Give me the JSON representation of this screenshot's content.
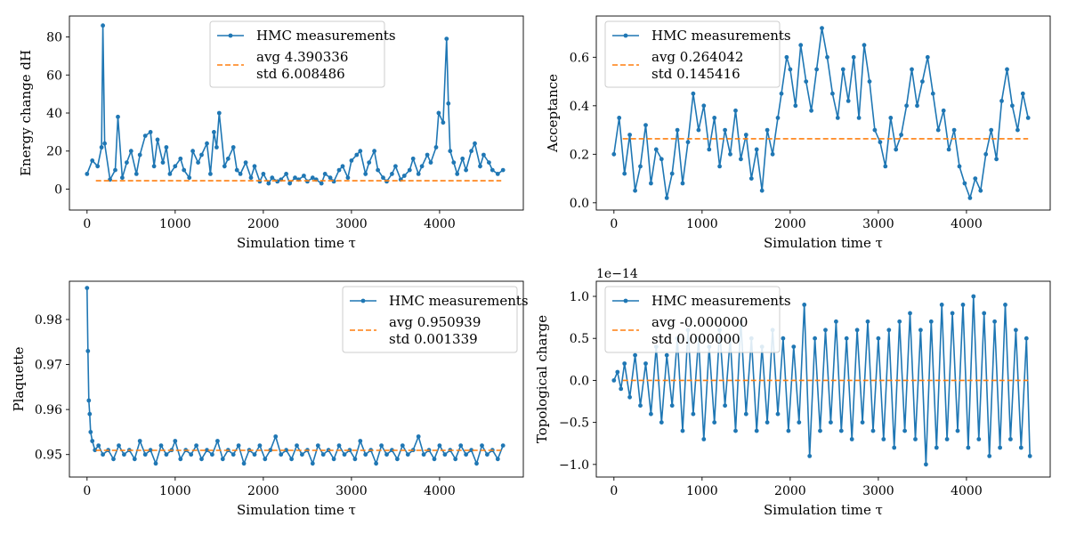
{
  "chart_data": [
    {
      "type": "line",
      "xlabel": "Simulation time τ",
      "ylabel": "Energy change dH",
      "xlim": [
        -200,
        4950
      ],
      "ylim": [
        -11,
        91
      ],
      "xticks": [
        0,
        1000,
        2000,
        3000,
        4000
      ],
      "yticks": [
        0,
        20,
        40,
        60,
        80
      ],
      "legend_position": "upper-center",
      "offset_text": "",
      "series": [
        {
          "name": "HMC measurements",
          "color": "#1f77b4",
          "style": "line-dots",
          "x": [
            0,
            60,
            120,
            165,
            180,
            200,
            260,
            320,
            350,
            400,
            450,
            500,
            560,
            600,
            660,
            720,
            760,
            800,
            860,
            900,
            940,
            1000,
            1060,
            1100,
            1160,
            1200,
            1260,
            1300,
            1360,
            1400,
            1440,
            1470,
            1500,
            1560,
            1600,
            1660,
            1700,
            1740,
            1800,
            1860,
            1900,
            1960,
            2000,
            2060,
            2100,
            2160,
            2200,
            2260,
            2300,
            2360,
            2400,
            2460,
            2500,
            2560,
            2600,
            2660,
            2700,
            2760,
            2800,
            2860,
            2900,
            2960,
            3000,
            3060,
            3100,
            3160,
            3200,
            3260,
            3300,
            3360,
            3400,
            3460,
            3500,
            3560,
            3600,
            3660,
            3700,
            3760,
            3800,
            3860,
            3900,
            3960,
            3990,
            4040,
            4080,
            4100,
            4120,
            4160,
            4200,
            4260,
            4300,
            4360,
            4400,
            4460,
            4500,
            4560,
            4600,
            4660,
            4720
          ],
          "y": [
            8,
            15,
            12,
            22,
            86,
            24,
            5,
            10,
            38,
            6,
            14,
            20,
            8,
            18,
            28,
            30,
            12,
            26,
            14,
            22,
            8,
            12,
            16,
            10,
            6,
            20,
            14,
            18,
            24,
            8,
            30,
            22,
            40,
            12,
            16,
            22,
            10,
            8,
            14,
            6,
            12,
            4,
            8,
            3,
            6,
            4,
            5,
            8,
            3,
            6,
            5,
            7,
            4,
            6,
            5,
            3,
            8,
            6,
            4,
            10,
            12,
            6,
            15,
            18,
            20,
            8,
            14,
            20,
            10,
            6,
            4,
            8,
            12,
            5,
            7,
            10,
            16,
            8,
            12,
            18,
            14,
            22,
            40,
            35,
            79,
            45,
            20,
            14,
            8,
            16,
            10,
            20,
            24,
            12,
            18,
            14,
            10,
            8,
            10
          ]
        },
        {
          "name": "avg 4.390336\nstd 6.008486",
          "color": "#ff7f0e",
          "style": "dashed",
          "x": [
            100,
            4700
          ],
          "y": [
            4.39,
            4.39
          ]
        }
      ],
      "legend_lines": [
        "HMC measurements",
        "avg 4.390336",
        "std 6.008486"
      ]
    },
    {
      "type": "line",
      "xlabel": "Simulation time τ",
      "ylabel": "Acceptance",
      "xlim": [
        -200,
        4950
      ],
      "ylim": [
        -0.03,
        0.77
      ],
      "xticks": [
        0,
        1000,
        2000,
        3000,
        4000
      ],
      "yticks": [
        0.0,
        0.2,
        0.4,
        0.6
      ],
      "legend_position": "upper-left",
      "offset_text": "",
      "series": [
        {
          "name": "HMC measurements",
          "color": "#1f77b4",
          "style": "line-dots",
          "x": [
            0,
            60,
            120,
            180,
            240,
            300,
            360,
            420,
            480,
            540,
            600,
            660,
            720,
            780,
            840,
            900,
            960,
            1020,
            1080,
            1140,
            1200,
            1260,
            1320,
            1380,
            1440,
            1500,
            1560,
            1620,
            1680,
            1740,
            1800,
            1860,
            1900,
            1960,
            2000,
            2060,
            2120,
            2180,
            2240,
            2300,
            2360,
            2420,
            2480,
            2540,
            2600,
            2660,
            2720,
            2780,
            2840,
            2900,
            2960,
            3020,
            3080,
            3140,
            3200,
            3260,
            3320,
            3380,
            3440,
            3500,
            3560,
            3620,
            3680,
            3740,
            3800,
            3860,
            3920,
            3980,
            4040,
            4100,
            4160,
            4220,
            4280,
            4340,
            4400,
            4460,
            4520,
            4580,
            4640,
            4700
          ],
          "y": [
            0.2,
            0.35,
            0.12,
            0.28,
            0.05,
            0.15,
            0.32,
            0.08,
            0.22,
            0.18,
            0.02,
            0.12,
            0.3,
            0.08,
            0.25,
            0.45,
            0.3,
            0.4,
            0.22,
            0.35,
            0.15,
            0.3,
            0.2,
            0.38,
            0.18,
            0.28,
            0.1,
            0.22,
            0.05,
            0.3,
            0.2,
            0.35,
            0.45,
            0.6,
            0.55,
            0.4,
            0.65,
            0.5,
            0.38,
            0.55,
            0.72,
            0.6,
            0.45,
            0.35,
            0.55,
            0.42,
            0.6,
            0.35,
            0.65,
            0.5,
            0.3,
            0.25,
            0.15,
            0.35,
            0.22,
            0.28,
            0.4,
            0.55,
            0.4,
            0.5,
            0.6,
            0.45,
            0.3,
            0.38,
            0.22,
            0.3,
            0.15,
            0.08,
            0.02,
            0.1,
            0.05,
            0.2,
            0.3,
            0.18,
            0.42,
            0.55,
            0.4,
            0.3,
            0.45,
            0.35
          ]
        },
        {
          "name": "avg 0.264042\nstd 0.145416",
          "color": "#ff7f0e",
          "style": "dashed",
          "x": [
            100,
            4700
          ],
          "y": [
            0.264,
            0.264
          ]
        }
      ],
      "legend_lines": [
        "HMC measurements",
        "avg 0.264042",
        "std 0.145416"
      ]
    },
    {
      "type": "line",
      "xlabel": "Simulation time τ",
      "ylabel": "Plaquette",
      "xlim": [
        -200,
        4950
      ],
      "ylim": [
        0.945,
        0.9885
      ],
      "xticks": [
        0,
        1000,
        2000,
        3000,
        4000
      ],
      "yticks": [
        0.95,
        0.96,
        0.97,
        0.98
      ],
      "legend_position": "upper-right",
      "offset_text": "",
      "series": [
        {
          "name": "HMC measurements",
          "color": "#1f77b4",
          "style": "line-dots",
          "x": [
            0,
            10,
            20,
            30,
            40,
            60,
            90,
            130,
            180,
            240,
            300,
            360,
            420,
            480,
            540,
            600,
            660,
            720,
            780,
            840,
            900,
            960,
            1000,
            1060,
            1120,
            1180,
            1240,
            1300,
            1360,
            1420,
            1480,
            1540,
            1600,
            1660,
            1720,
            1780,
            1840,
            1900,
            1960,
            2020,
            2080,
            2140,
            2200,
            2260,
            2320,
            2380,
            2440,
            2500,
            2560,
            2620,
            2680,
            2740,
            2800,
            2860,
            2920,
            2980,
            3040,
            3100,
            3160,
            3220,
            3280,
            3340,
            3400,
            3460,
            3520,
            3580,
            3640,
            3700,
            3760,
            3820,
            3880,
            3940,
            4000,
            4060,
            4120,
            4180,
            4240,
            4300,
            4360,
            4420,
            4480,
            4540,
            4600,
            4660,
            4720
          ],
          "y": [
            0.987,
            0.973,
            0.962,
            0.959,
            0.955,
            0.953,
            0.951,
            0.952,
            0.95,
            0.951,
            0.949,
            0.952,
            0.95,
            0.951,
            0.949,
            0.953,
            0.95,
            0.951,
            0.948,
            0.952,
            0.95,
            0.951,
            0.953,
            0.949,
            0.951,
            0.95,
            0.952,
            0.949,
            0.951,
            0.95,
            0.953,
            0.949,
            0.951,
            0.95,
            0.952,
            0.948,
            0.951,
            0.95,
            0.952,
            0.949,
            0.951,
            0.954,
            0.95,
            0.951,
            0.949,
            0.952,
            0.95,
            0.951,
            0.948,
            0.952,
            0.95,
            0.951,
            0.949,
            0.952,
            0.95,
            0.951,
            0.949,
            0.953,
            0.95,
            0.951,
            0.948,
            0.952,
            0.95,
            0.951,
            0.949,
            0.952,
            0.95,
            0.951,
            0.954,
            0.95,
            0.951,
            0.949,
            0.952,
            0.95,
            0.951,
            0.949,
            0.952,
            0.95,
            0.951,
            0.948,
            0.952,
            0.95,
            0.951,
            0.949,
            0.952
          ]
        },
        {
          "name": "avg 0.950939\nstd 0.001339",
          "color": "#ff7f0e",
          "style": "dashed",
          "x": [
            100,
            4700
          ],
          "y": [
            0.95094,
            0.95094
          ]
        }
      ],
      "legend_lines": [
        "HMC measurements",
        "avg 0.950939",
        "std 0.001339"
      ]
    },
    {
      "type": "line",
      "xlabel": "Simulation time τ",
      "ylabel": "Topological charge",
      "xlim": [
        -200,
        4950
      ],
      "ylim": [
        -1.15,
        1.18
      ],
      "xticks": [
        0,
        1000,
        2000,
        3000,
        4000
      ],
      "yticks": [
        -1.0,
        -0.5,
        0.0,
        0.5,
        1.0
      ],
      "legend_position": "upper-left",
      "offset_text": "1e−14",
      "series": [
        {
          "name": "HMC measurements",
          "color": "#1f77b4",
          "style": "line-dots",
          "x": [
            0,
            40,
            80,
            120,
            180,
            240,
            300,
            360,
            420,
            480,
            540,
            600,
            660,
            720,
            780,
            840,
            900,
            960,
            1020,
            1080,
            1140,
            1200,
            1260,
            1320,
            1380,
            1440,
            1500,
            1560,
            1620,
            1680,
            1740,
            1800,
            1860,
            1920,
            1980,
            2040,
            2100,
            2160,
            2220,
            2280,
            2340,
            2400,
            2460,
            2520,
            2580,
            2640,
            2700,
            2760,
            2820,
            2880,
            2940,
            3000,
            3060,
            3120,
            3180,
            3240,
            3300,
            3360,
            3420,
            3480,
            3540,
            3600,
            3660,
            3720,
            3780,
            3840,
            3900,
            3960,
            4020,
            4080,
            4140,
            4200,
            4260,
            4320,
            4380,
            4440,
            4500,
            4560,
            4620,
            4680,
            4720
          ],
          "y": [
            0.0,
            0.1,
            -0.1,
            0.2,
            -0.2,
            0.3,
            -0.3,
            0.2,
            -0.4,
            0.4,
            -0.5,
            0.3,
            -0.3,
            0.5,
            -0.6,
            0.6,
            -0.4,
            0.5,
            -0.7,
            0.4,
            -0.5,
            0.6,
            -0.3,
            0.5,
            -0.6,
            0.7,
            -0.4,
            0.5,
            -0.6,
            0.4,
            -0.5,
            0.6,
            -0.4,
            0.5,
            -0.6,
            0.4,
            -0.5,
            0.9,
            -0.9,
            0.5,
            -0.6,
            0.6,
            -0.5,
            0.7,
            -0.6,
            0.5,
            -0.7,
            0.6,
            -0.5,
            0.7,
            -0.6,
            0.5,
            -0.7,
            0.6,
            -0.8,
            0.7,
            -0.6,
            0.8,
            -0.7,
            0.6,
            -1.0,
            0.7,
            -0.8,
            0.9,
            -0.7,
            0.8,
            -0.6,
            0.9,
            -0.8,
            1.0,
            -0.7,
            0.8,
            -0.9,
            0.7,
            -0.8,
            0.9,
            -0.7,
            0.6,
            -0.8,
            0.5,
            -0.9
          ]
        },
        {
          "name": "avg -0.000000\nstd 0.000000",
          "color": "#ff7f0e",
          "style": "dashed",
          "x": [
            100,
            4700
          ],
          "y": [
            0.0,
            0.0
          ]
        }
      ],
      "legend_lines": [
        "HMC measurements",
        "avg -0.000000",
        "std 0.000000"
      ]
    }
  ]
}
